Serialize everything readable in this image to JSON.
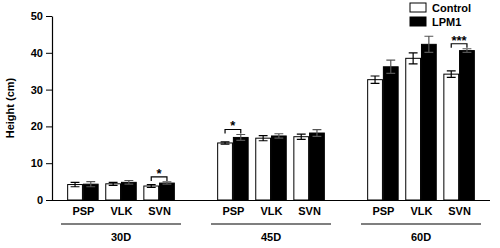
{
  "chart_data": {
    "type": "bar",
    "y_label": "Height (cm)",
    "categories": [
      "PSP",
      "VLK",
      "SVN",
      "PSP",
      "VLK",
      "SVN",
      "PSP",
      "VLK",
      "SVN"
    ],
    "groups": [
      "30D",
      "45D",
      "60D"
    ],
    "series": [
      {
        "name": "Control",
        "color": "#ffffff",
        "values": [
          4.2,
          4.4,
          3.8,
          15.5,
          16.8,
          17.2,
          32.7,
          38.5,
          34.2
        ],
        "errors": [
          0.6,
          0.4,
          0.4,
          0.3,
          0.7,
          0.7,
          1.0,
          1.5,
          0.9
        ]
      },
      {
        "name": "LPM1",
        "color": "#000000",
        "values": [
          4.3,
          4.8,
          4.6,
          17.0,
          17.4,
          18.2,
          36.2,
          42.3,
          40.6
        ],
        "errors": [
          0.7,
          0.5,
          0.3,
          0.8,
          0.6,
          0.9,
          1.8,
          2.2,
          0.5
        ]
      }
    ],
    "annotations": [
      {
        "text": "*",
        "category": 2
      },
      {
        "text": "*",
        "category": 3
      },
      {
        "text": "***",
        "category": 8
      }
    ],
    "ylim": [
      0,
      50
    ],
    "yticks": [
      0,
      10,
      20,
      30,
      40,
      50
    ],
    "grid": false,
    "legend": "upper right"
  }
}
